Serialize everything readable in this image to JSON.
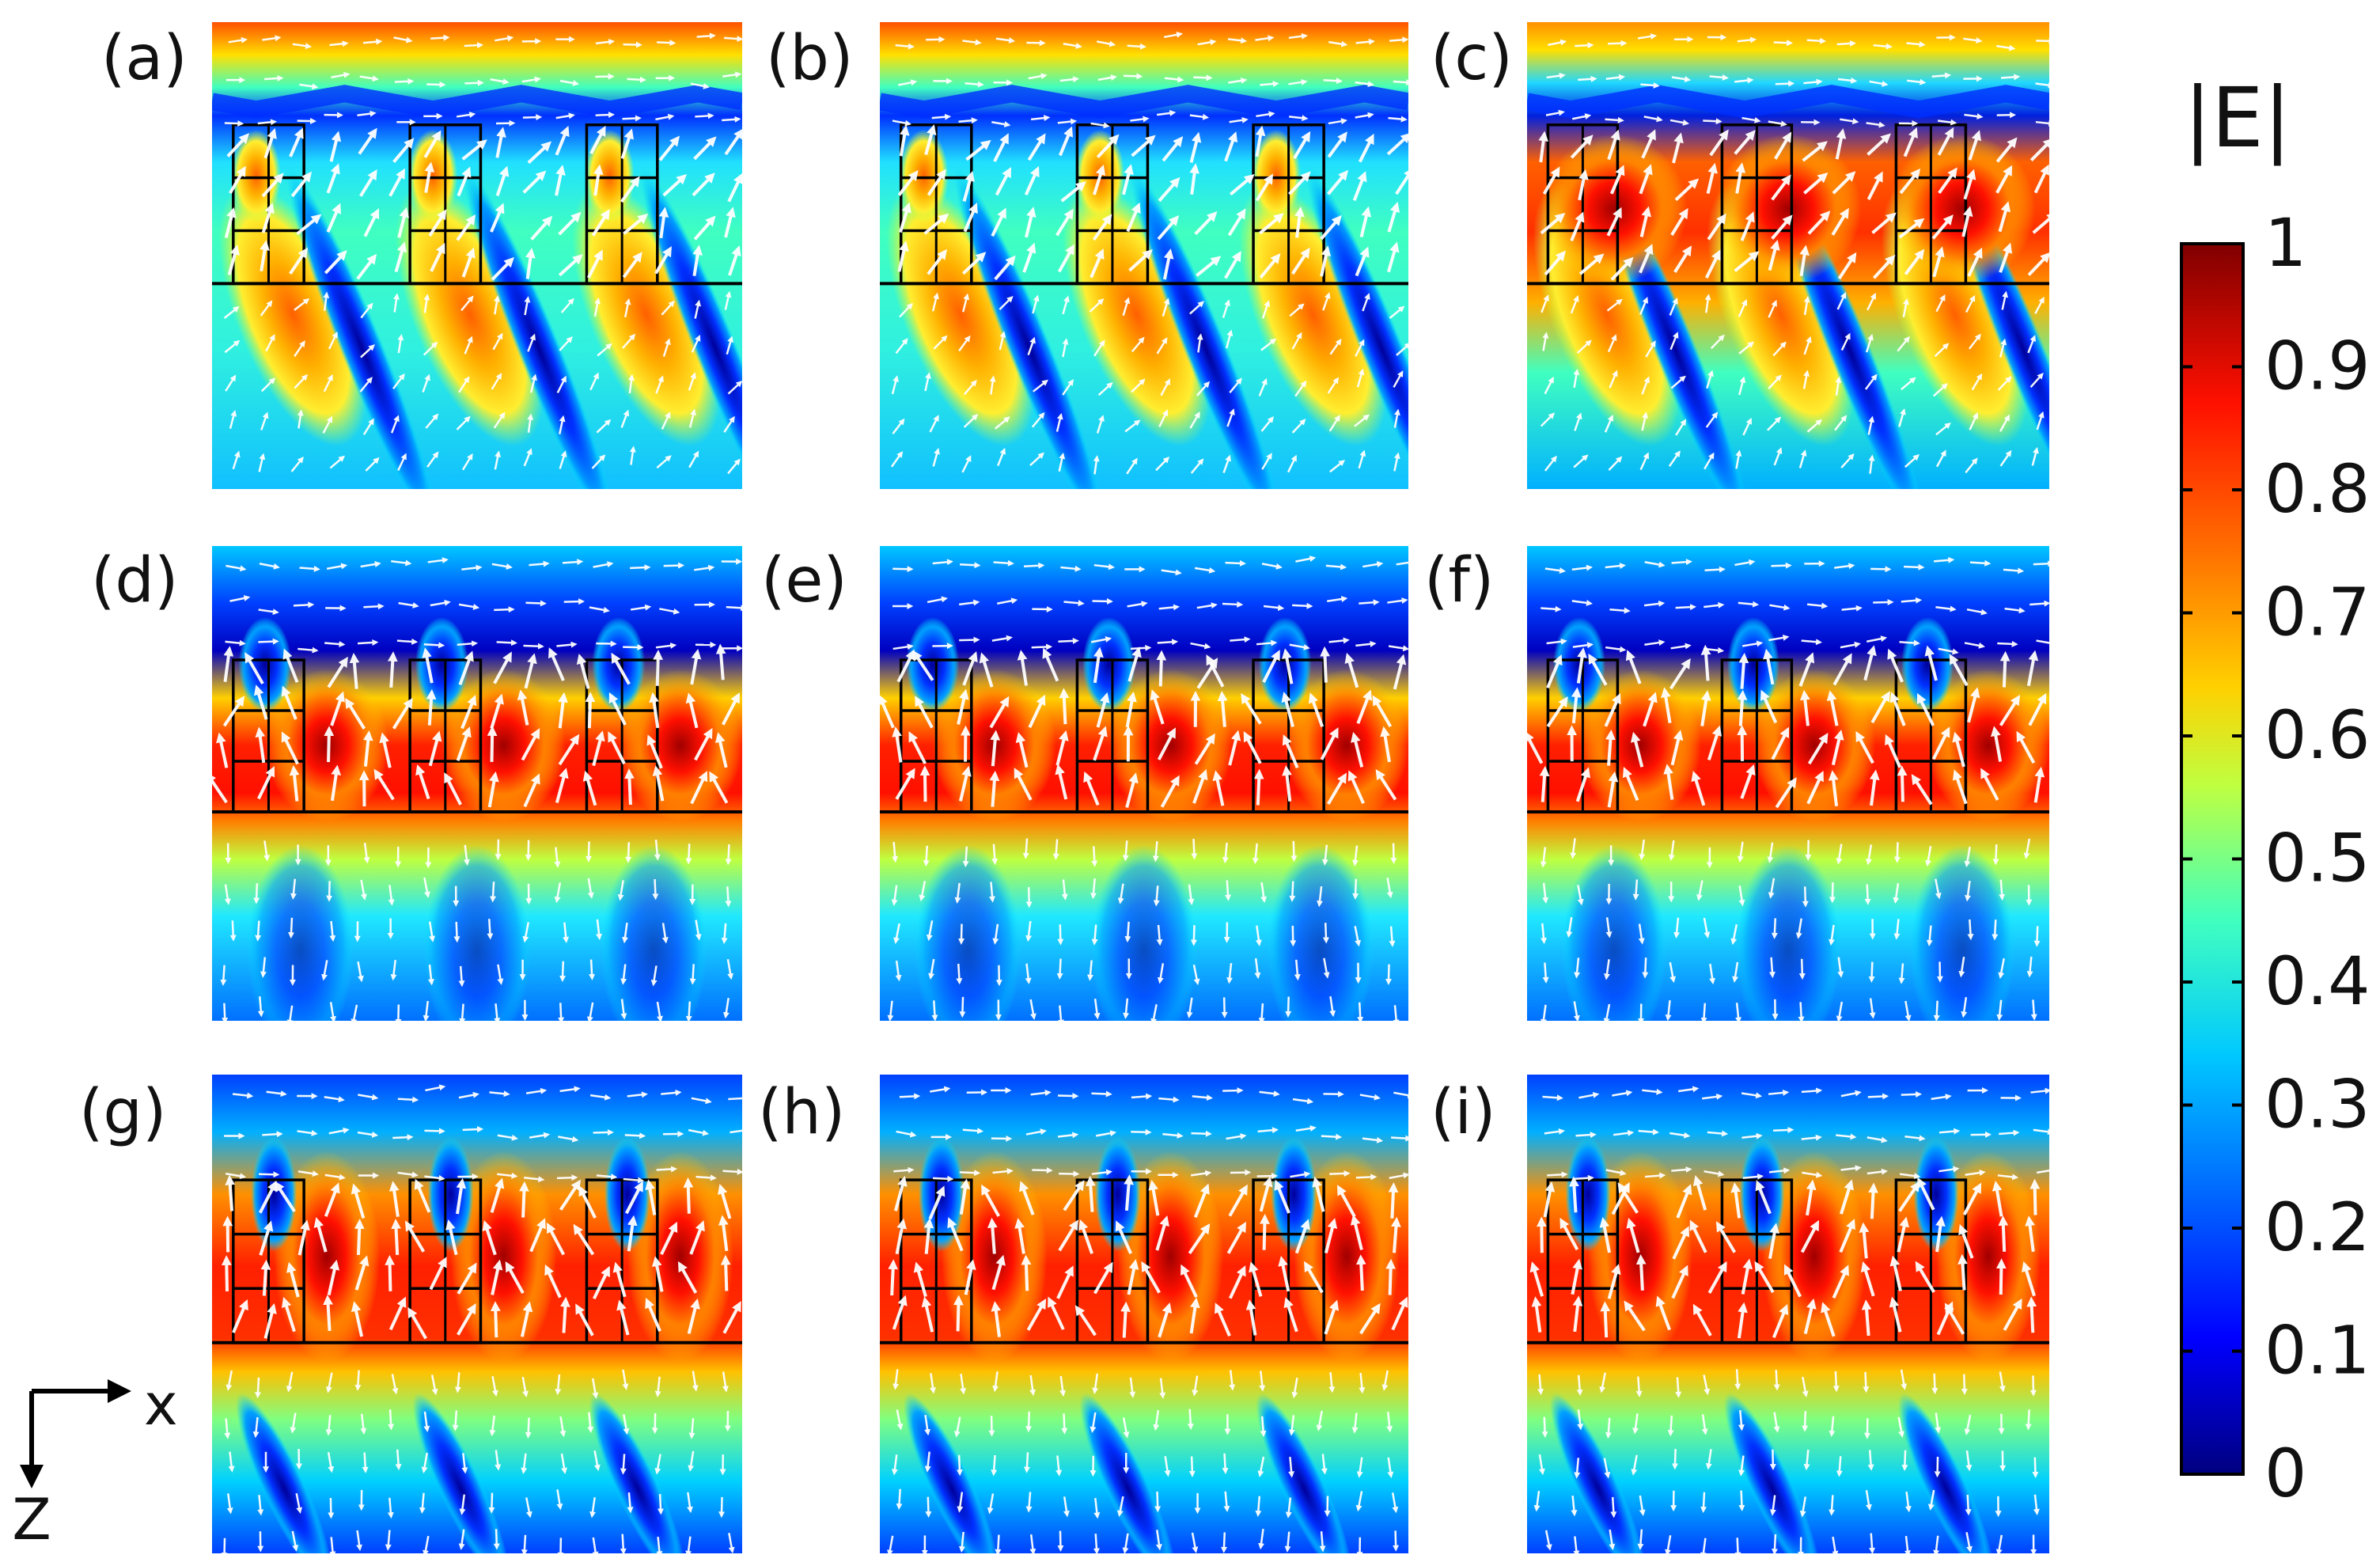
{
  "figure": {
    "panels": [
      {
        "id": "a",
        "label": "(a)",
        "row": 0,
        "col": 0,
        "variant": "low"
      },
      {
        "id": "b",
        "label": "(b)",
        "row": 0,
        "col": 1,
        "variant": "low"
      },
      {
        "id": "c",
        "label": "(c)",
        "row": 0,
        "col": 2,
        "variant": "mid"
      },
      {
        "id": "d",
        "label": "(d)",
        "row": 1,
        "col": 0,
        "variant": "band"
      },
      {
        "id": "e",
        "label": "(e)",
        "row": 1,
        "col": 1,
        "variant": "band"
      },
      {
        "id": "f",
        "label": "(f)",
        "row": 1,
        "col": 2,
        "variant": "band"
      },
      {
        "id": "g",
        "label": "(g)",
        "row": 2,
        "col": 0,
        "variant": "cells"
      },
      {
        "id": "h",
        "label": "(h)",
        "row": 2,
        "col": 1,
        "variant": "cells"
      },
      {
        "id": "i",
        "label": "(i)",
        "row": 2,
        "col": 2,
        "variant": "cells"
      }
    ],
    "colorbar": {
      "title": "|E|",
      "min": 0,
      "max": 1,
      "ticks": [
        "0",
        "0.1",
        "0.2",
        "0.3",
        "0.4",
        "0.5",
        "0.6",
        "0.7",
        "0.8",
        "0.9",
        "1"
      ],
      "colors": [
        "#00007f",
        "#0000ff",
        "#007fff",
        "#00ffff",
        "#7fff7f",
        "#ffff00",
        "#ff7f00",
        "#ff0000",
        "#7f0000"
      ]
    },
    "axes": {
      "x_label": "x",
      "z_label": "Z"
    },
    "colors": {
      "arrow": "#ffffff",
      "structure_line": "#000000"
    }
  }
}
